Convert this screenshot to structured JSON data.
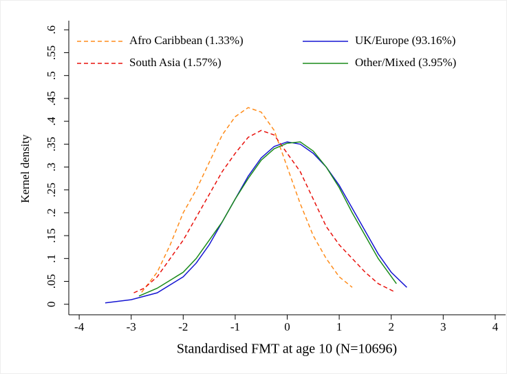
{
  "chart_data": {
    "type": "line",
    "x_label": "Standardised FMT at age 10 (N=10696)",
    "y_label": "Kernel density",
    "xlim": [
      -4.2,
      4.2
    ],
    "ylim": [
      -0.023,
      0.62
    ],
    "xticks": [
      -4,
      -3,
      -2,
      -1,
      0,
      1,
      2,
      3,
      4
    ],
    "yticks": [
      0,
      {
        "value": 0.05,
        "label": ".05"
      },
      {
        "value": 0.1,
        "label": ".1"
      },
      {
        "value": 0.15,
        "label": ".15"
      },
      {
        "value": 0.2,
        "label": ".2"
      },
      {
        "value": 0.25,
        "label": ".25"
      },
      {
        "value": 0.3,
        "label": ".3"
      },
      {
        "value": 0.35,
        "label": ".35"
      },
      {
        "value": 0.4,
        "label": ".4"
      },
      {
        "value": 0.45,
        "label": ".45"
      },
      {
        "value": 0.5,
        "label": ".5"
      },
      {
        "value": 0.55,
        "label": ".55"
      },
      {
        "value": 0.6,
        "label": ".6"
      }
    ],
    "legend": "top",
    "series": [
      {
        "name": "Afro Caribbean (1.33%)",
        "color": "#ff8c1a",
        "dashed": true,
        "x": [
          -2.8,
          -2.5,
          -2.25,
          -2,
          -1.75,
          -1.5,
          -1.25,
          -1,
          -0.75,
          -0.5,
          -0.25,
          0,
          0.25,
          0.5,
          0.75,
          1,
          1.25
        ],
        "values": [
          0.026,
          0.07,
          0.13,
          0.2,
          0.25,
          0.31,
          0.37,
          0.41,
          0.43,
          0.42,
          0.38,
          0.3,
          0.22,
          0.15,
          0.1,
          0.06,
          0.037
        ]
      },
      {
        "name": "UK/Europe (93.16%)",
        "color": "#1414d2",
        "dashed": false,
        "x": [
          -3.5,
          -3,
          -2.5,
          -2,
          -1.75,
          -1.5,
          -1.25,
          -1,
          -0.75,
          -0.5,
          -0.25,
          0,
          0.25,
          0.5,
          0.75,
          1,
          1.25,
          1.5,
          1.75,
          2,
          2.3
        ],
        "values": [
          0.003,
          0.01,
          0.025,
          0.06,
          0.09,
          0.13,
          0.18,
          0.23,
          0.28,
          0.32,
          0.345,
          0.355,
          0.35,
          0.33,
          0.3,
          0.26,
          0.21,
          0.16,
          0.11,
          0.07,
          0.037
        ]
      },
      {
        "name": "South Asia (1.57%)",
        "color": "#e8100b",
        "dashed": true,
        "x": [
          -2.95,
          -2.75,
          -2.5,
          -2.25,
          -2,
          -1.75,
          -1.5,
          -1.25,
          -1,
          -0.75,
          -0.5,
          -0.25,
          0,
          0.25,
          0.5,
          0.75,
          1,
          1.25,
          1.5,
          1.75,
          2.05
        ],
        "values": [
          0.025,
          0.035,
          0.06,
          0.1,
          0.14,
          0.19,
          0.24,
          0.29,
          0.33,
          0.365,
          0.38,
          0.37,
          0.33,
          0.29,
          0.23,
          0.17,
          0.13,
          0.1,
          0.07,
          0.045,
          0.028
        ]
      },
      {
        "name": "Other/Mixed (3.95%)",
        "color": "#1a8a1a",
        "dashed": false,
        "x": [
          -2.85,
          -2.5,
          -2,
          -1.75,
          -1.5,
          -1.25,
          -1,
          -0.75,
          -0.5,
          -0.25,
          0,
          0.25,
          0.5,
          0.75,
          1,
          1.25,
          1.5,
          1.75,
          2.1
        ],
        "values": [
          0.018,
          0.035,
          0.07,
          0.1,
          0.14,
          0.18,
          0.23,
          0.275,
          0.315,
          0.34,
          0.352,
          0.355,
          0.335,
          0.3,
          0.255,
          0.2,
          0.15,
          0.1,
          0.045
        ]
      }
    ]
  }
}
